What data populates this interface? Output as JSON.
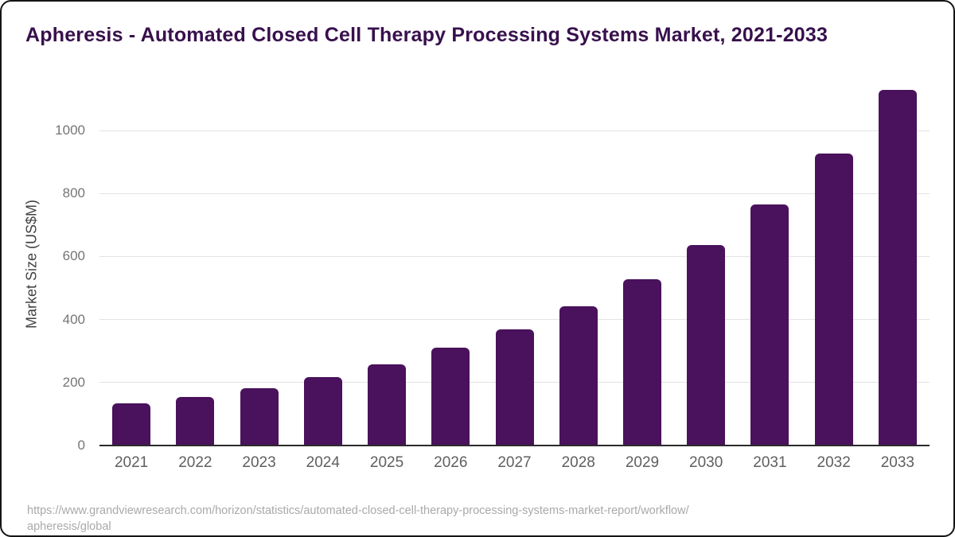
{
  "chart_data": {
    "type": "bar",
    "title": "Apheresis - Automated Closed Cell Therapy Processing Systems Market, 2021-2033",
    "categories": [
      "2021",
      "2022",
      "2023",
      "2024",
      "2025",
      "2026",
      "2027",
      "2028",
      "2029",
      "2030",
      "2031",
      "2032",
      "2033"
    ],
    "values": [
      133,
      155,
      183,
      217,
      258,
      310,
      368,
      443,
      529,
      636,
      765,
      927,
      1129
    ],
    "xlabel": "",
    "ylabel": "Market Size (US$M)",
    "ylim": [
      0,
      1160
    ],
    "yticks": [
      0,
      200,
      400,
      600,
      800,
      1000
    ],
    "grid": true,
    "legend": "none",
    "bar_color": "#4a115c"
  },
  "source": {
    "line1": "https://www.grandviewresearch.com/horizon/statistics/automated-closed-cell-therapy-processing-systems-market-report/workflow/",
    "line2": "apheresis/global"
  },
  "colors": {
    "title_text": "#38104d",
    "bar": "#4a115c",
    "gridline": "#e3e3e3",
    "axis_line": "#2a2a2a",
    "y_tick_text": "#757575",
    "x_tick_text": "#5f5f5f",
    "axis_title_text": "#424242",
    "source_text": "#a9a9a9",
    "card_border": "#141414",
    "background": "#ffffff"
  }
}
